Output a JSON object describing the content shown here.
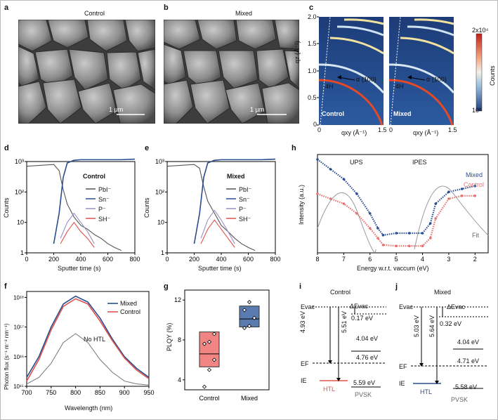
{
  "panels": {
    "a": {
      "letter": "a",
      "title": "Control",
      "scale": "1 µm"
    },
    "b": {
      "letter": "b",
      "title": "Mixed",
      "scale": "1 µm"
    },
    "c": {
      "letter": "c",
      "ylabel": "qz (Å⁻¹)",
      "xlabel": "qxy (Å⁻¹)",
      "yticks": [
        "0",
        "0.5",
        "1.0",
        "1.5",
        "2.0"
      ],
      "xticks_left": [
        "0",
        "1.5"
      ],
      "xticks_right": [
        "0",
        "1.5"
      ],
      "left_label": "Control",
      "right_label": "Mixed",
      "annot_alpha": "α (100)",
      "annot_4h": "4H",
      "colorbar_top": "2x10⁴",
      "colorbar_bottom": "10²",
      "colorbar_label": "Counts"
    },
    "d": {
      "letter": "d",
      "title": "Control",
      "legend": [
        "PbI⁻",
        "Sn⁻",
        "P⁻",
        "SH⁻"
      ]
    },
    "e": {
      "letter": "e",
      "title": "Mixed",
      "legend": [
        "PbI⁻",
        "Sn⁻",
        "P⁻",
        "SH⁻"
      ]
    },
    "h": {
      "letter": "h",
      "ups": "UPS",
      "ipes": "IPES",
      "mixed": "Mixed",
      "control": "Control",
      "fit": "Fit",
      "xlabel": "Energy w.r.t. vaccum (eV)",
      "ylabel": "Intensity (a.u.)",
      "xticks": [
        "8",
        "7",
        "6",
        "5",
        "4",
        "3",
        "2"
      ]
    },
    "f": {
      "letter": "f",
      "xlabel": "Wavelength (nm)",
      "ylabel": "Photon flux (s⁻¹ m⁻² nm⁻¹)",
      "legend": [
        "Mixed",
        "Control"
      ],
      "nohtl": "No HTL",
      "xticks": [
        "700",
        "750",
        "800",
        "850",
        "900",
        "950"
      ]
    },
    "g": {
      "letter": "g",
      "ylabel": "PLQY (%)",
      "categories": [
        "Control",
        "Mixed"
      ],
      "yticks": [
        "4",
        "8",
        "12"
      ]
    },
    "i": {
      "letter": "i",
      "title": "Control",
      "evac": "Evac",
      "ef": "EF",
      "ie": "IE",
      "d_evac": "ΔEvac",
      "v017": "0.17 eV",
      "v493": "4.93 eV",
      "v551": "5.51 eV",
      "v404": "4.04 eV",
      "v476": "4.76 eV",
      "v559": "5.59 eV",
      "htl": "HTL",
      "pvsk": "PVSK"
    },
    "j": {
      "letter": "j",
      "title": "Mixed",
      "evac": "Evac",
      "ef": "EF",
      "ie": "IE",
      "d_evac": "ΔEvac",
      "v032": "0.32 eV",
      "v503": "5.03 eV",
      "v564": "5.64 eV",
      "v404": "4.04 eV",
      "v471": "4.71 eV",
      "v558": "5.58 eV",
      "htl": "HTL",
      "pvsk": "PVSK"
    }
  },
  "common": {
    "counts": "Counts",
    "sputter": "Sputter time (s)",
    "sputter_ticks": [
      "0",
      "200",
      "400",
      "600",
      "800"
    ],
    "count_ticks": [
      "10³",
      "10²",
      "10",
      "1"
    ]
  },
  "chart_data": [
    {
      "type": "line",
      "panel": "d",
      "title": "Control",
      "xlabel": "Sputter time (s)",
      "ylabel": "Counts",
      "xlim": [
        0,
        800
      ],
      "ylim": [
        1,
        1000
      ],
      "yscale": "log",
      "series": [
        {
          "name": "PbI⁻",
          "x": [
            0,
            100,
            200,
            240,
            270,
            300,
            350,
            400,
            450,
            500,
            550,
            600,
            650,
            700
          ],
          "y": [
            700,
            750,
            800,
            500,
            120,
            40,
            15,
            8,
            6,
            4,
            3,
            2,
            1.5,
            1.2
          ]
        },
        {
          "name": "Sn⁻",
          "x": [
            200,
            240,
            270,
            300,
            350,
            400,
            500,
            600,
            700,
            800
          ],
          "y": [
            2,
            20,
            300,
            900,
            1100,
            1150,
            1150,
            1150,
            1150,
            1200
          ]
        },
        {
          "name": "P⁻",
          "x": [
            250,
            300,
            350,
            400,
            450,
            500
          ],
          "y": [
            3,
            10,
            20,
            10,
            5,
            2
          ]
        },
        {
          "name": "SH⁻",
          "x": [
            250,
            300,
            350,
            400,
            450,
            500
          ],
          "y": [
            2,
            5,
            10,
            5,
            3,
            1.5
          ]
        }
      ]
    },
    {
      "type": "line",
      "panel": "e",
      "title": "Mixed",
      "xlabel": "Sputter time (s)",
      "ylabel": "Counts",
      "xlim": [
        0,
        800
      ],
      "ylim": [
        1,
        1000
      ],
      "yscale": "log",
      "series": [
        {
          "name": "PbI⁻",
          "x": [
            0,
            100,
            200,
            240,
            270,
            300,
            350,
            400,
            450,
            500,
            550,
            600,
            650
          ],
          "y": [
            700,
            750,
            800,
            600,
            150,
            50,
            20,
            8,
            5,
            3,
            2,
            1.5,
            1.2
          ]
        },
        {
          "name": "Sn⁻",
          "x": [
            200,
            240,
            270,
            300,
            350,
            400,
            500,
            600,
            700,
            800
          ],
          "y": [
            2,
            20,
            300,
            900,
            1100,
            1150,
            1150,
            1150,
            1150,
            1200
          ]
        },
        {
          "name": "P⁻",
          "x": [
            250,
            300,
            350,
            400,
            450,
            500
          ],
          "y": [
            3,
            12,
            25,
            12,
            5,
            2
          ]
        },
        {
          "name": "SH⁻",
          "x": [
            250,
            300,
            350,
            400,
            450,
            500
          ],
          "y": [
            2,
            6,
            12,
            6,
            3,
            1.5
          ]
        }
      ]
    },
    {
      "type": "scatter",
      "panel": "h",
      "xlabel": "Energy w.r.t. vaccum (eV)",
      "ylabel": "Intensity (a.u.)",
      "xlim": [
        8,
        1.5
      ],
      "series": [
        {
          "name": "Mixed",
          "x": [
            8,
            7.5,
            7,
            6.5,
            6,
            5.7,
            5.5,
            5,
            4.5,
            4,
            3.7,
            3.5,
            3,
            2.5,
            2
          ],
          "y": [
            0.95,
            0.85,
            0.75,
            0.6,
            0.4,
            0.25,
            0.18,
            0.2,
            0.2,
            0.2,
            0.3,
            0.5,
            0.62,
            0.65,
            0.68
          ]
        },
        {
          "name": "Control",
          "x": [
            8,
            7.5,
            7,
            6.5,
            6,
            5.7,
            5.5,
            5,
            4.5,
            4,
            3.7,
            3.5,
            3,
            2.5,
            2
          ],
          "y": [
            0.6,
            0.55,
            0.5,
            0.4,
            0.25,
            0.15,
            0.08,
            0.07,
            0.07,
            0.07,
            0.15,
            0.35,
            0.55,
            0.58,
            0.58
          ]
        }
      ]
    },
    {
      "type": "line",
      "panel": "f",
      "xlabel": "Wavelength (nm)",
      "ylabel": "Photon flux (s⁻¹ m⁻² nm⁻¹)",
      "xlim": [
        700,
        950
      ],
      "yscale": "log",
      "series": [
        {
          "name": "Mixed",
          "x": [
            700,
            725,
            750,
            775,
            800,
            825,
            850,
            875,
            900,
            925,
            950
          ],
          "y": [
            2000000000000000.0,
            1e+16,
            1e+17,
            6e+17,
            1.1e+18,
            7e+17,
            2e+17,
            4e+16,
            1e+16,
            4000000000000000.0,
            2000000000000000.0
          ]
        },
        {
          "name": "Control",
          "x": [
            700,
            725,
            750,
            775,
            800,
            825,
            850,
            875,
            900,
            925,
            950
          ],
          "y": [
            1500000000000000.0,
            8000000000000000.0,
            8e+16,
            5e+17,
            9e+17,
            6e+17,
            1.6e+17,
            3.5e+16,
            9000000000000000.0,
            3500000000000000.0,
            1800000000000000.0
          ]
        },
        {
          "name": "No HTL",
          "x": [
            700,
            725,
            750,
            775,
            800,
            825,
            850,
            875,
            900,
            925,
            950
          ],
          "y": [
            1200000000000000.0,
            2000000000000000.0,
            6000000000000000.0,
            3e+16,
            6e+16,
            3e+16,
            8000000000000000.0,
            3000000000000000.0,
            1500000000000000.0,
            1200000000000000.0,
            1100000000000000.0
          ]
        }
      ]
    },
    {
      "type": "box",
      "panel": "g",
      "ylabel": "PLQY (%)",
      "categories": [
        "Control",
        "Mixed"
      ],
      "ylim": [
        3,
        13
      ],
      "series": [
        {
          "name": "Control",
          "points": [
            3.3,
            5.0,
            6.0,
            7.6,
            7.8,
            8.6
          ],
          "q1": 5.3,
          "median": 6.6,
          "q3": 8.8
        },
        {
          "name": "Mixed",
          "points": [
            9.2,
            9.4,
            10.2,
            11.0,
            11.8
          ],
          "q1": 9.3,
          "median": 10.1,
          "q3": 11.4
        }
      ]
    }
  ]
}
